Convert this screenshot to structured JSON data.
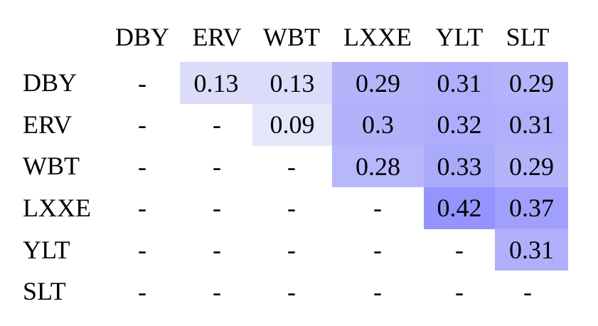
{
  "chart_data": {
    "type": "heatmap",
    "columns": [
      "DBY",
      "ERV",
      "WBT",
      "LXXE",
      "YLT",
      "SLT"
    ],
    "rows": [
      "DBY",
      "ERV",
      "WBT",
      "LXXE",
      "YLT",
      "SLT"
    ],
    "values": [
      [
        null,
        0.13,
        0.13,
        0.29,
        0.31,
        0.29
      ],
      [
        null,
        null,
        0.09,
        0.3,
        0.32,
        0.31
      ],
      [
        null,
        null,
        null,
        0.28,
        0.33,
        0.29
      ],
      [
        null,
        null,
        null,
        null,
        0.42,
        0.37
      ],
      [
        null,
        null,
        null,
        null,
        null,
        0.31
      ],
      [
        null,
        null,
        null,
        null,
        null,
        null
      ]
    ],
    "labels": [
      [
        "-",
        "0.13",
        "0.13",
        "0.29",
        "0.31",
        "0.29"
      ],
      [
        "-",
        "-",
        "0.09",
        "0.3",
        "0.32",
        "0.31"
      ],
      [
        "-",
        "-",
        "-",
        "0.28",
        "0.33",
        "0.29"
      ],
      [
        "-",
        "-",
        "-",
        "-",
        "0.42",
        "0.37"
      ],
      [
        "-",
        "-",
        "-",
        "-",
        "-",
        "0.31"
      ],
      [
        "-",
        "-",
        "-",
        "-",
        "-",
        "-"
      ]
    ],
    "missing_label": "-",
    "color_low": "#e6e6fa",
    "color_high": "#9494fc"
  }
}
